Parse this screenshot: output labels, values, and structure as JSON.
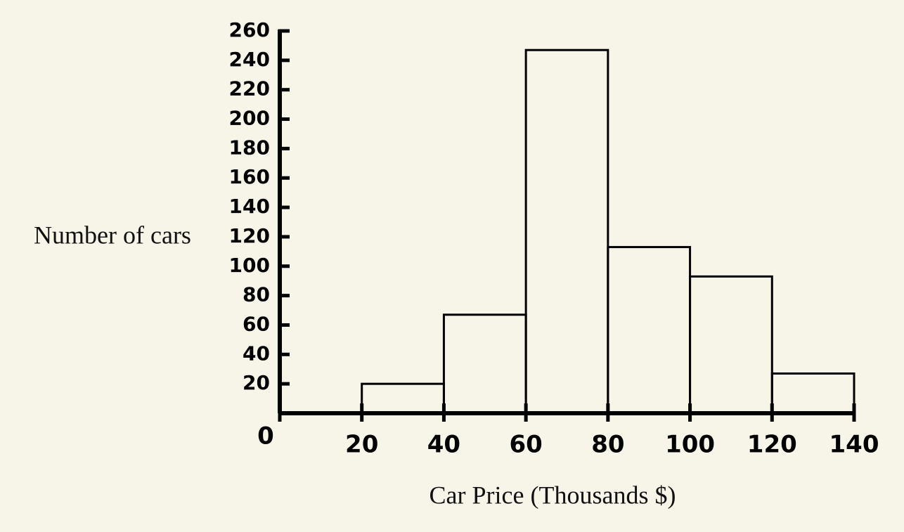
{
  "chart_data": {
    "type": "histogram",
    "xlabel": "Car Price (Thousands $)",
    "ylabel": "Number of cars",
    "bins": [
      20,
      40,
      60,
      80,
      100,
      120,
      140
    ],
    "counts": [
      20,
      67,
      247,
      113,
      93,
      27
    ],
    "color": "#000000",
    "xlim": [
      0,
      140
    ],
    "xticks": [
      0,
      20,
      40,
      60,
      80,
      100,
      120,
      140
    ],
    "ylim": [
      0,
      260
    ],
    "yticks": [
      20,
      40,
      60,
      80,
      100,
      120,
      140,
      160,
      180,
      200,
      220,
      240,
      260
    ]
  }
}
